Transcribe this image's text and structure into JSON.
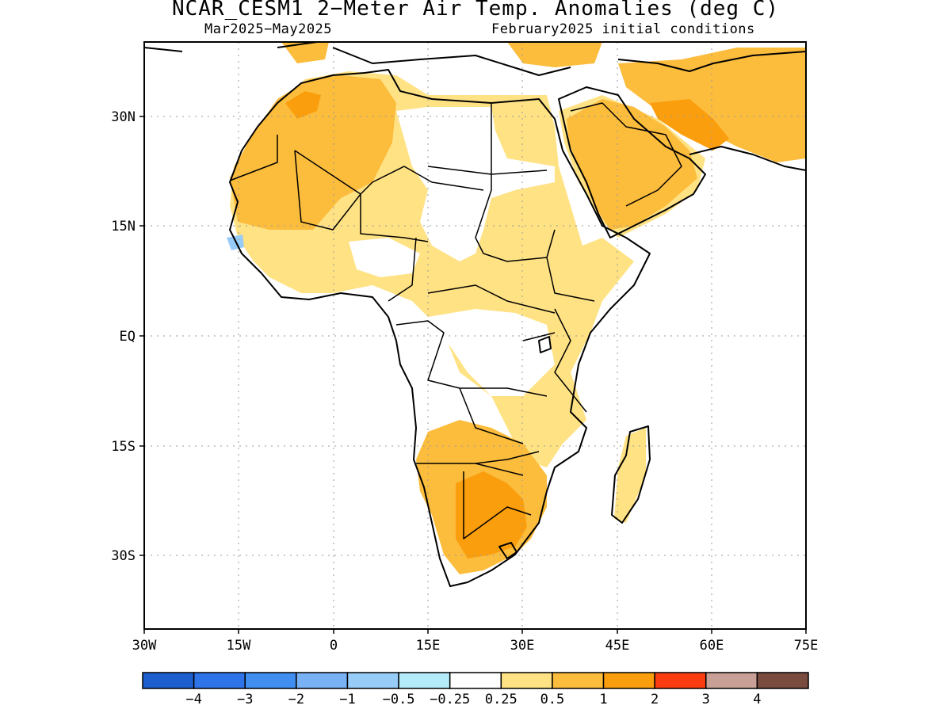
{
  "title": "NCAR_CESM1 2−Meter Air Temp. Anomalies (deg C)",
  "subtitle_left": "Mar2025−May2025",
  "subtitle_right": "February2025 initial conditions",
  "map": {
    "lat_ticks": [
      "30N",
      "15N",
      "EQ",
      "15S",
      "30S"
    ],
    "lon_ticks": [
      "30W",
      "15W",
      "0",
      "15E",
      "30E",
      "45E",
      "60E",
      "75E"
    ]
  },
  "legend": {
    "colors": [
      "#1e5fcf",
      "#2f73e8",
      "#3f8ef0",
      "#78b2f5",
      "#98ccf8",
      "#b3ecf8",
      "#ffffff",
      "#ffe284",
      "#fcbc3c",
      "#fb9e0e",
      "#fb3c10",
      "#c9a095",
      "#7a4c3f"
    ],
    "labels": [
      "−4",
      "−3",
      "−2",
      "−1",
      "−0.5",
      "−0.25",
      "0.25",
      "0.5",
      "1",
      "2",
      "3",
      "4"
    ]
  },
  "palette": {
    "light": "#ffe284",
    "mid": "#fcbc3c",
    "strong": "#fb9e0e",
    "cool": "#98ccf8"
  }
}
